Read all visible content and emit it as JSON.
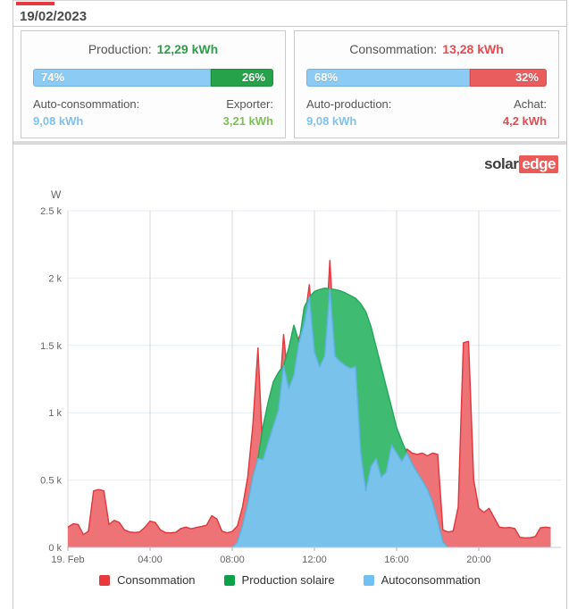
{
  "date_bar": {
    "date": "19/02/2023"
  },
  "production_panel": {
    "title": "Production:",
    "value": "12,29 kWh",
    "bar": {
      "left_label": "74%",
      "left_pct": 74,
      "right_label": "26%",
      "right_pct": 26
    },
    "bottom_left_label": "Auto-consommation:",
    "bottom_left_value": "9,08 kWh",
    "bottom_right_label": "Exporter:",
    "bottom_right_value": "3,21 kWh"
  },
  "consumption_panel": {
    "title": "Consommation:",
    "value": "13,28 kWh",
    "bar": {
      "left_label": "68%",
      "left_pct": 68,
      "right_label": "32%",
      "right_pct": 32
    },
    "bottom_left_label": "Auto-production:",
    "bottom_left_value": "9,08 kWh",
    "bottom_right_label": "Achat:",
    "bottom_right_value": "4,2 kWh"
  },
  "logo": {
    "text_plain": "solar",
    "text_badge": "edge"
  },
  "colors": {
    "tab_red": "#e8393d",
    "bar_blue": "#8ccbf3",
    "bar_green": "#26a24b",
    "bar_red": "#ea5d5f",
    "value_green_dark": "#2d9e47",
    "value_green_light": "#7cc154",
    "value_red": "#e84a4f",
    "value_blue": "#80c1ee"
  },
  "chart_data": {
    "type": "area",
    "title": "",
    "xlabel": "",
    "ylabel": "W",
    "ylim": [
      0,
      2500
    ],
    "grid": true,
    "legend_position": "bottom",
    "x": {
      "start_hour": 0,
      "step_hours": 0.25,
      "end_hour": 23.5
    },
    "x_ticks": [
      {
        "h": 0,
        "label": "19. Feb"
      },
      {
        "h": 4,
        "label": "04:00"
      },
      {
        "h": 8,
        "label": "08:00"
      },
      {
        "h": 12,
        "label": "12:00"
      },
      {
        "h": 16,
        "label": "16:00"
      },
      {
        "h": 20,
        "label": "20:00"
      }
    ],
    "y_ticks": [
      {
        "v": 0,
        "label": "0 k"
      },
      {
        "v": 500,
        "label": "0.5 k"
      },
      {
        "v": 1000,
        "label": "1 k"
      },
      {
        "v": 1500,
        "label": "1.5 k"
      },
      {
        "v": 2000,
        "label": "2 k"
      },
      {
        "v": 2500,
        "label": "2.5 k"
      }
    ],
    "legend": [
      {
        "label": "Consommation",
        "color": "#e8393d"
      },
      {
        "label": "Production solaire",
        "color": "#0aa14a"
      },
      {
        "label": "Autoconsommation",
        "color": "#70c0f1"
      }
    ],
    "series": [
      {
        "name": "Consommation",
        "fill": "#ee7376",
        "stroke": "#e23a41",
        "values": [
          150,
          175,
          170,
          95,
          120,
          420,
          430,
          420,
          170,
          200,
          185,
          130,
          115,
          110,
          115,
          150,
          195,
          185,
          130,
          110,
          108,
          112,
          140,
          150,
          138,
          148,
          155,
          165,
          235,
          210,
          120,
          108,
          118,
          160,
          300,
          520,
          900,
          1480,
          650,
          780,
          900,
          1020,
          1580,
          1180,
          1280,
          1560,
          1660,
          1950,
          1450,
          1340,
          1420,
          2130,
          1420,
          1380,
          1350,
          1330,
          1340,
          700,
          420,
          600,
          660,
          520,
          560,
          760,
          700,
          640,
          730,
          700,
          690,
          700,
          680,
          700,
          690,
          130,
          115,
          120,
          300,
          1520,
          1530,
          500,
          290,
          260,
          290,
          220,
          150,
          145,
          148,
          140,
          75,
          70,
          72,
          80,
          145,
          150,
          145
        ]
      },
      {
        "name": "Production solaire",
        "fill": "#40bc72",
        "stroke": "#23a95c",
        "values": [
          0,
          0,
          0,
          0,
          0,
          0,
          0,
          0,
          0,
          0,
          0,
          0,
          0,
          0,
          0,
          0,
          0,
          0,
          0,
          0,
          0,
          0,
          0,
          0,
          0,
          0,
          0,
          0,
          0,
          0,
          0,
          0,
          0,
          40,
          160,
          320,
          520,
          660,
          900,
          1080,
          1230,
          1300,
          1350,
          1480,
          1650,
          1520,
          1780,
          1860,
          1900,
          1915,
          1925,
          1920,
          1915,
          1905,
          1890,
          1870,
          1850,
          1810,
          1750,
          1640,
          1490,
          1340,
          1190,
          1040,
          890,
          790,
          700,
          620,
          555,
          495,
          430,
          330,
          190,
          40,
          0,
          0,
          0,
          0,
          0,
          0,
          0,
          0,
          0,
          0,
          0,
          0,
          0,
          0,
          0,
          0,
          0,
          0,
          0,
          0,
          0
        ]
      },
      {
        "name": "Autoconsommation",
        "fill": "#79c2ec",
        "stroke": "#5fb3e4",
        "derived_from": "min(Consommation, Production solaire)"
      }
    ]
  }
}
